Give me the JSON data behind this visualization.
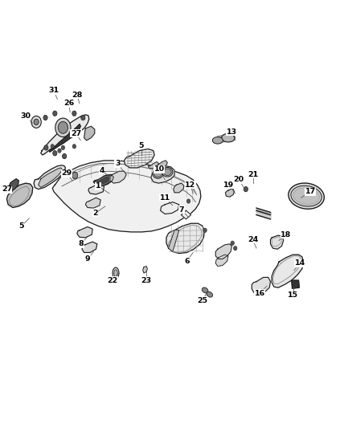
{
  "bg_color": "#ffffff",
  "lc": "#1a1a1a",
  "lw": 0.9,
  "figsize": [
    4.38,
    5.33
  ],
  "dpi": 100,
  "labels": [
    [
      1,
      0.31,
      0.548,
      0.278,
      0.565
    ],
    [
      2,
      0.298,
      0.518,
      0.27,
      0.502
    ],
    [
      3,
      0.35,
      0.6,
      0.333,
      0.618
    ],
    [
      4,
      0.31,
      0.587,
      0.288,
      0.602
    ],
    [
      5,
      0.082,
      0.49,
      0.06,
      0.472
    ],
    [
      5,
      0.4,
      0.638,
      0.4,
      0.66
    ],
    [
      6,
      0.548,
      0.41,
      0.53,
      0.39
    ],
    [
      7,
      0.535,
      0.492,
      0.515,
      0.51
    ],
    [
      8,
      0.248,
      0.448,
      0.23,
      0.43
    ],
    [
      9,
      0.265,
      0.412,
      0.248,
      0.394
    ],
    [
      10,
      0.468,
      0.58,
      0.452,
      0.605
    ],
    [
      11,
      0.49,
      0.52,
      0.468,
      0.538
    ],
    [
      12,
      0.548,
      0.548,
      0.54,
      0.568
    ],
    [
      13,
      0.668,
      0.672,
      0.658,
      0.692
    ],
    [
      14,
      0.835,
      0.368,
      0.852,
      0.385
    ],
    [
      15,
      0.832,
      0.33,
      0.832,
      0.31
    ],
    [
      16,
      0.758,
      0.332,
      0.738,
      0.315
    ],
    [
      17,
      0.855,
      0.538,
      0.882,
      0.552
    ],
    [
      18,
      0.792,
      0.438,
      0.812,
      0.452
    ],
    [
      19,
      0.668,
      0.548,
      0.65,
      0.568
    ],
    [
      20,
      0.692,
      0.562,
      0.678,
      0.58
    ],
    [
      21,
      0.718,
      0.572,
      0.718,
      0.592
    ],
    [
      22,
      0.338,
      0.362,
      0.318,
      0.345
    ],
    [
      23,
      0.415,
      0.365,
      0.415,
      0.345
    ],
    [
      24,
      0.728,
      0.42,
      0.718,
      0.44
    ],
    [
      25,
      0.588,
      0.318,
      0.575,
      0.298
    ],
    [
      26,
      0.198,
      0.738,
      0.195,
      0.758
    ],
    [
      27,
      0.038,
      0.572,
      0.018,
      0.558
    ],
    [
      27,
      0.228,
      0.672,
      0.215,
      0.688
    ],
    [
      28,
      0.225,
      0.758,
      0.218,
      0.778
    ],
    [
      29,
      0.205,
      0.578,
      0.188,
      0.595
    ],
    [
      30,
      0.092,
      0.712,
      0.072,
      0.728
    ],
    [
      31,
      0.162,
      0.768,
      0.152,
      0.788
    ]
  ]
}
